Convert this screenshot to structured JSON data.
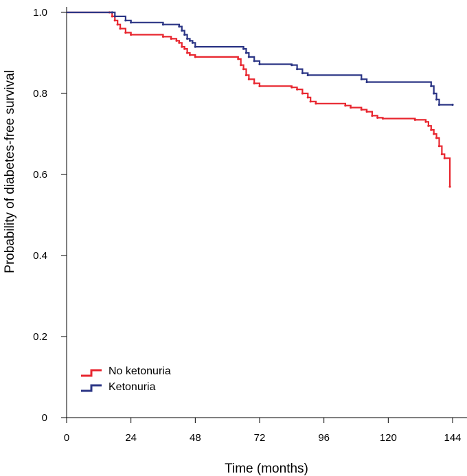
{
  "chart_data": {
    "type": "line",
    "xlabel": "Time (months)",
    "ylabel": "Probability of diabetes-free survival",
    "xlim": [
      0,
      146
    ],
    "ylim": [
      0,
      1.0
    ],
    "x_ticks": [
      0,
      24,
      48,
      72,
      96,
      120,
      144
    ],
    "y_ticks": [
      {
        "value": 0,
        "label": "0"
      },
      {
        "value": 0.2,
        "label": "0.2"
      },
      {
        "value": 0.4,
        "label": "0.4"
      },
      {
        "value": 0.6,
        "label": "0.6"
      },
      {
        "value": 0.8,
        "label": "0.8"
      },
      {
        "value": 1.0,
        "label": "1.0"
      }
    ],
    "grid": false,
    "legend_position": "bottom-left",
    "series": [
      {
        "name": "No ketonuria",
        "color": "#e8262f",
        "points": [
          [
            0,
            1.0
          ],
          [
            16,
            1.0
          ],
          [
            17,
            0.99
          ],
          [
            18,
            0.98
          ],
          [
            19,
            0.97
          ],
          [
            20,
            0.96
          ],
          [
            22,
            0.95
          ],
          [
            24,
            0.945
          ],
          [
            36,
            0.94
          ],
          [
            39,
            0.935
          ],
          [
            41,
            0.93
          ],
          [
            42,
            0.925
          ],
          [
            43,
            0.915
          ],
          [
            44,
            0.91
          ],
          [
            45,
            0.9
          ],
          [
            46,
            0.895
          ],
          [
            48,
            0.89
          ],
          [
            64,
            0.885
          ],
          [
            65,
            0.87
          ],
          [
            66,
            0.86
          ],
          [
            67,
            0.845
          ],
          [
            68,
            0.835
          ],
          [
            70,
            0.825
          ],
          [
            72,
            0.818
          ],
          [
            84,
            0.815
          ],
          [
            86,
            0.81
          ],
          [
            88,
            0.8
          ],
          [
            90,
            0.79
          ],
          [
            91,
            0.78
          ],
          [
            93,
            0.775
          ],
          [
            104,
            0.77
          ],
          [
            106,
            0.765
          ],
          [
            110,
            0.76
          ],
          [
            112,
            0.755
          ],
          [
            114,
            0.745
          ],
          [
            116,
            0.74
          ],
          [
            118,
            0.738
          ],
          [
            130,
            0.735
          ],
          [
            134,
            0.73
          ],
          [
            135,
            0.72
          ],
          [
            136,
            0.71
          ],
          [
            137,
            0.7
          ],
          [
            138,
            0.69
          ],
          [
            139,
            0.67
          ],
          [
            140,
            0.65
          ],
          [
            141,
            0.64
          ],
          [
            143,
            0.57
          ]
        ]
      },
      {
        "name": "Ketonuria",
        "color": "#2b3585",
        "points": [
          [
            0,
            1.0
          ],
          [
            17,
            1.0
          ],
          [
            18,
            0.99
          ],
          [
            22,
            0.98
          ],
          [
            24,
            0.975
          ],
          [
            36,
            0.97
          ],
          [
            42,
            0.965
          ],
          [
            43,
            0.955
          ],
          [
            44,
            0.945
          ],
          [
            45,
            0.935
          ],
          [
            46,
            0.93
          ],
          [
            47,
            0.925
          ],
          [
            48,
            0.915
          ],
          [
            66,
            0.91
          ],
          [
            67,
            0.9
          ],
          [
            68,
            0.89
          ],
          [
            70,
            0.88
          ],
          [
            72,
            0.872
          ],
          [
            84,
            0.87
          ],
          [
            86,
            0.86
          ],
          [
            88,
            0.85
          ],
          [
            90,
            0.845
          ],
          [
            110,
            0.835
          ],
          [
            112,
            0.828
          ],
          [
            136,
            0.818
          ],
          [
            137,
            0.8
          ],
          [
            138,
            0.785
          ],
          [
            139,
            0.772
          ],
          [
            144,
            0.772
          ]
        ]
      }
    ]
  }
}
